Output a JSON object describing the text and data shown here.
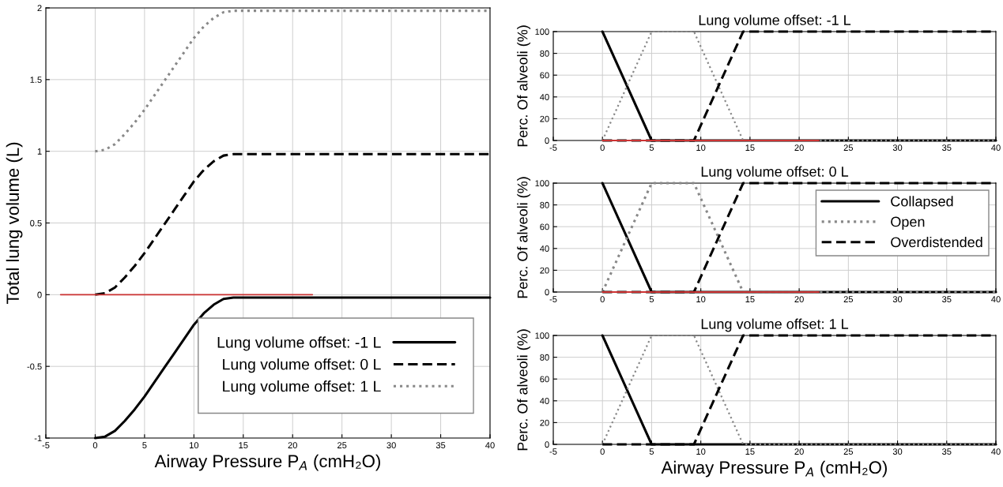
{
  "chart_data": [
    {
      "type": "line",
      "xlabel": "Airway Pressure P$_{A}$ (cmH₂O)",
      "ylabel": "Total lung volume (L)",
      "xlim": [
        -5,
        40
      ],
      "ylim": [
        -1,
        2
      ],
      "xticks": [
        -5,
        0,
        5,
        10,
        15,
        20,
        25,
        30,
        35,
        40
      ],
      "yticks": [
        -1,
        -0.5,
        0,
        0.5,
        1,
        1.5,
        2
      ],
      "grid": true,
      "legend": "bottom right",
      "series": [
        {
          "name": "Lung volume offset: -1 L",
          "color": "#000000",
          "line_style": "solid",
          "x": [
            0,
            1,
            2,
            3,
            4,
            5,
            6,
            7,
            8,
            9,
            10,
            11,
            12,
            13,
            14,
            40
          ],
          "values": [
            -1,
            -0.99,
            -0.95,
            -0.88,
            -0.8,
            -0.71,
            -0.61,
            -0.51,
            -0.41,
            -0.31,
            -0.21,
            -0.13,
            -0.07,
            -0.03,
            -0.02,
            -0.02
          ]
        },
        {
          "name": "Lung volume offset: 0 L",
          "color": "#000000",
          "line_style": "dashed",
          "x": [
            0,
            1,
            2,
            3,
            4,
            5,
            6,
            7,
            8,
            9,
            10,
            11,
            12,
            13,
            14,
            40
          ],
          "values": [
            0,
            0.01,
            0.05,
            0.12,
            0.2,
            0.29,
            0.39,
            0.49,
            0.59,
            0.69,
            0.79,
            0.87,
            0.93,
            0.97,
            0.98,
            0.98
          ]
        },
        {
          "name": "Lung volume offset: 1 L",
          "color": "#888888",
          "line_style": "dotted",
          "x": [
            0,
            1,
            2,
            3,
            4,
            5,
            6,
            7,
            8,
            9,
            10,
            11,
            12,
            13,
            14,
            40
          ],
          "values": [
            1,
            1.01,
            1.05,
            1.12,
            1.2,
            1.29,
            1.39,
            1.49,
            1.59,
            1.69,
            1.79,
            1.87,
            1.93,
            1.97,
            1.98,
            1.98
          ]
        },
        {
          "color": "#cc3333",
          "line_style": "solid",
          "x": [
            -3.5,
            22
          ],
          "values": [
            0,
            0
          ]
        }
      ]
    },
    {
      "type": "line",
      "title": "Lung volume offset: -1 L",
      "ylabel": "Perc. Of alveoli (%)",
      "xlim": [
        -5,
        40
      ],
      "ylim": [
        0,
        100
      ],
      "xticks": [
        -5,
        0,
        5,
        10,
        15,
        20,
        25,
        30,
        35,
        40
      ],
      "yticks": [
        0,
        20,
        40,
        60,
        80,
        100
      ],
      "grid": true,
      "series": [
        {
          "color": "#000000",
          "line_style": "solid",
          "x": [
            0,
            5,
            40
          ],
          "values": [
            100,
            0,
            0
          ]
        },
        {
          "color": "#888888",
          "line_style": "dotted",
          "x": [
            0,
            5,
            9.3,
            14.3,
            40
          ],
          "values": [
            0,
            100,
            100,
            0,
            0
          ]
        },
        {
          "color": "#000000",
          "line_style": "dashed",
          "x": [
            0,
            9.3,
            14.3,
            40
          ],
          "values": [
            0,
            0,
            100,
            100
          ]
        },
        {
          "color": "#cc3333",
          "line_style": "solid",
          "x": [
            0,
            22
          ],
          "values": [
            0,
            0
          ]
        }
      ]
    },
    {
      "type": "line",
      "title": "Lung volume offset: 0 L",
      "ylabel": "Perc. Of alveoli (%)",
      "xlim": [
        -5,
        40
      ],
      "ylim": [
        0,
        100
      ],
      "xticks": [
        -5,
        0,
        5,
        10,
        15,
        20,
        25,
        30,
        35,
        40
      ],
      "yticks": [
        0,
        20,
        40,
        60,
        80,
        100
      ],
      "grid": true,
      "legend": "top right",
      "series": [
        {
          "name": "Collapsed",
          "color": "#000000",
          "line_style": "solid",
          "x": [
            0,
            5,
            40
          ],
          "values": [
            100,
            0,
            0
          ]
        },
        {
          "name": "Open",
          "color": "#888888",
          "line_style": "dotted",
          "x": [
            0,
            5,
            9.3,
            14.3,
            40
          ],
          "values": [
            0,
            100,
            100,
            0,
            0
          ]
        },
        {
          "name": "Overdistended",
          "color": "#000000",
          "line_style": "dashed",
          "x": [
            0,
            9.3,
            14.3,
            40
          ],
          "values": [
            0,
            0,
            100,
            100
          ]
        },
        {
          "color": "#cc3333",
          "line_style": "solid",
          "x": [
            0,
            22
          ],
          "values": [
            0,
            0
          ]
        }
      ]
    },
    {
      "type": "line",
      "title": "Lung volume offset: 1 L",
      "xlabel": "Airway Pressure P$_{A}$ (cmH₂O)",
      "ylabel": "Perc. Of alveoli (%)",
      "xlim": [
        -5,
        40
      ],
      "ylim": [
        0,
        100
      ],
      "xticks": [
        -5,
        0,
        5,
        10,
        15,
        20,
        25,
        30,
        35,
        40
      ],
      "yticks": [
        0,
        20,
        40,
        60,
        80,
        100
      ],
      "grid": true,
      "series": [
        {
          "color": "#000000",
          "line_style": "solid",
          "x": [
            0,
            5,
            40
          ],
          "values": [
            100,
            0,
            0
          ]
        },
        {
          "color": "#888888",
          "line_style": "dotted",
          "x": [
            0,
            5,
            9.3,
            14.3,
            40
          ],
          "values": [
            0,
            100,
            100,
            0,
            0
          ]
        },
        {
          "color": "#000000",
          "line_style": "dashed",
          "x": [
            0,
            9.3,
            14.3,
            40
          ],
          "values": [
            0,
            0,
            100,
            100
          ]
        }
      ]
    }
  ]
}
